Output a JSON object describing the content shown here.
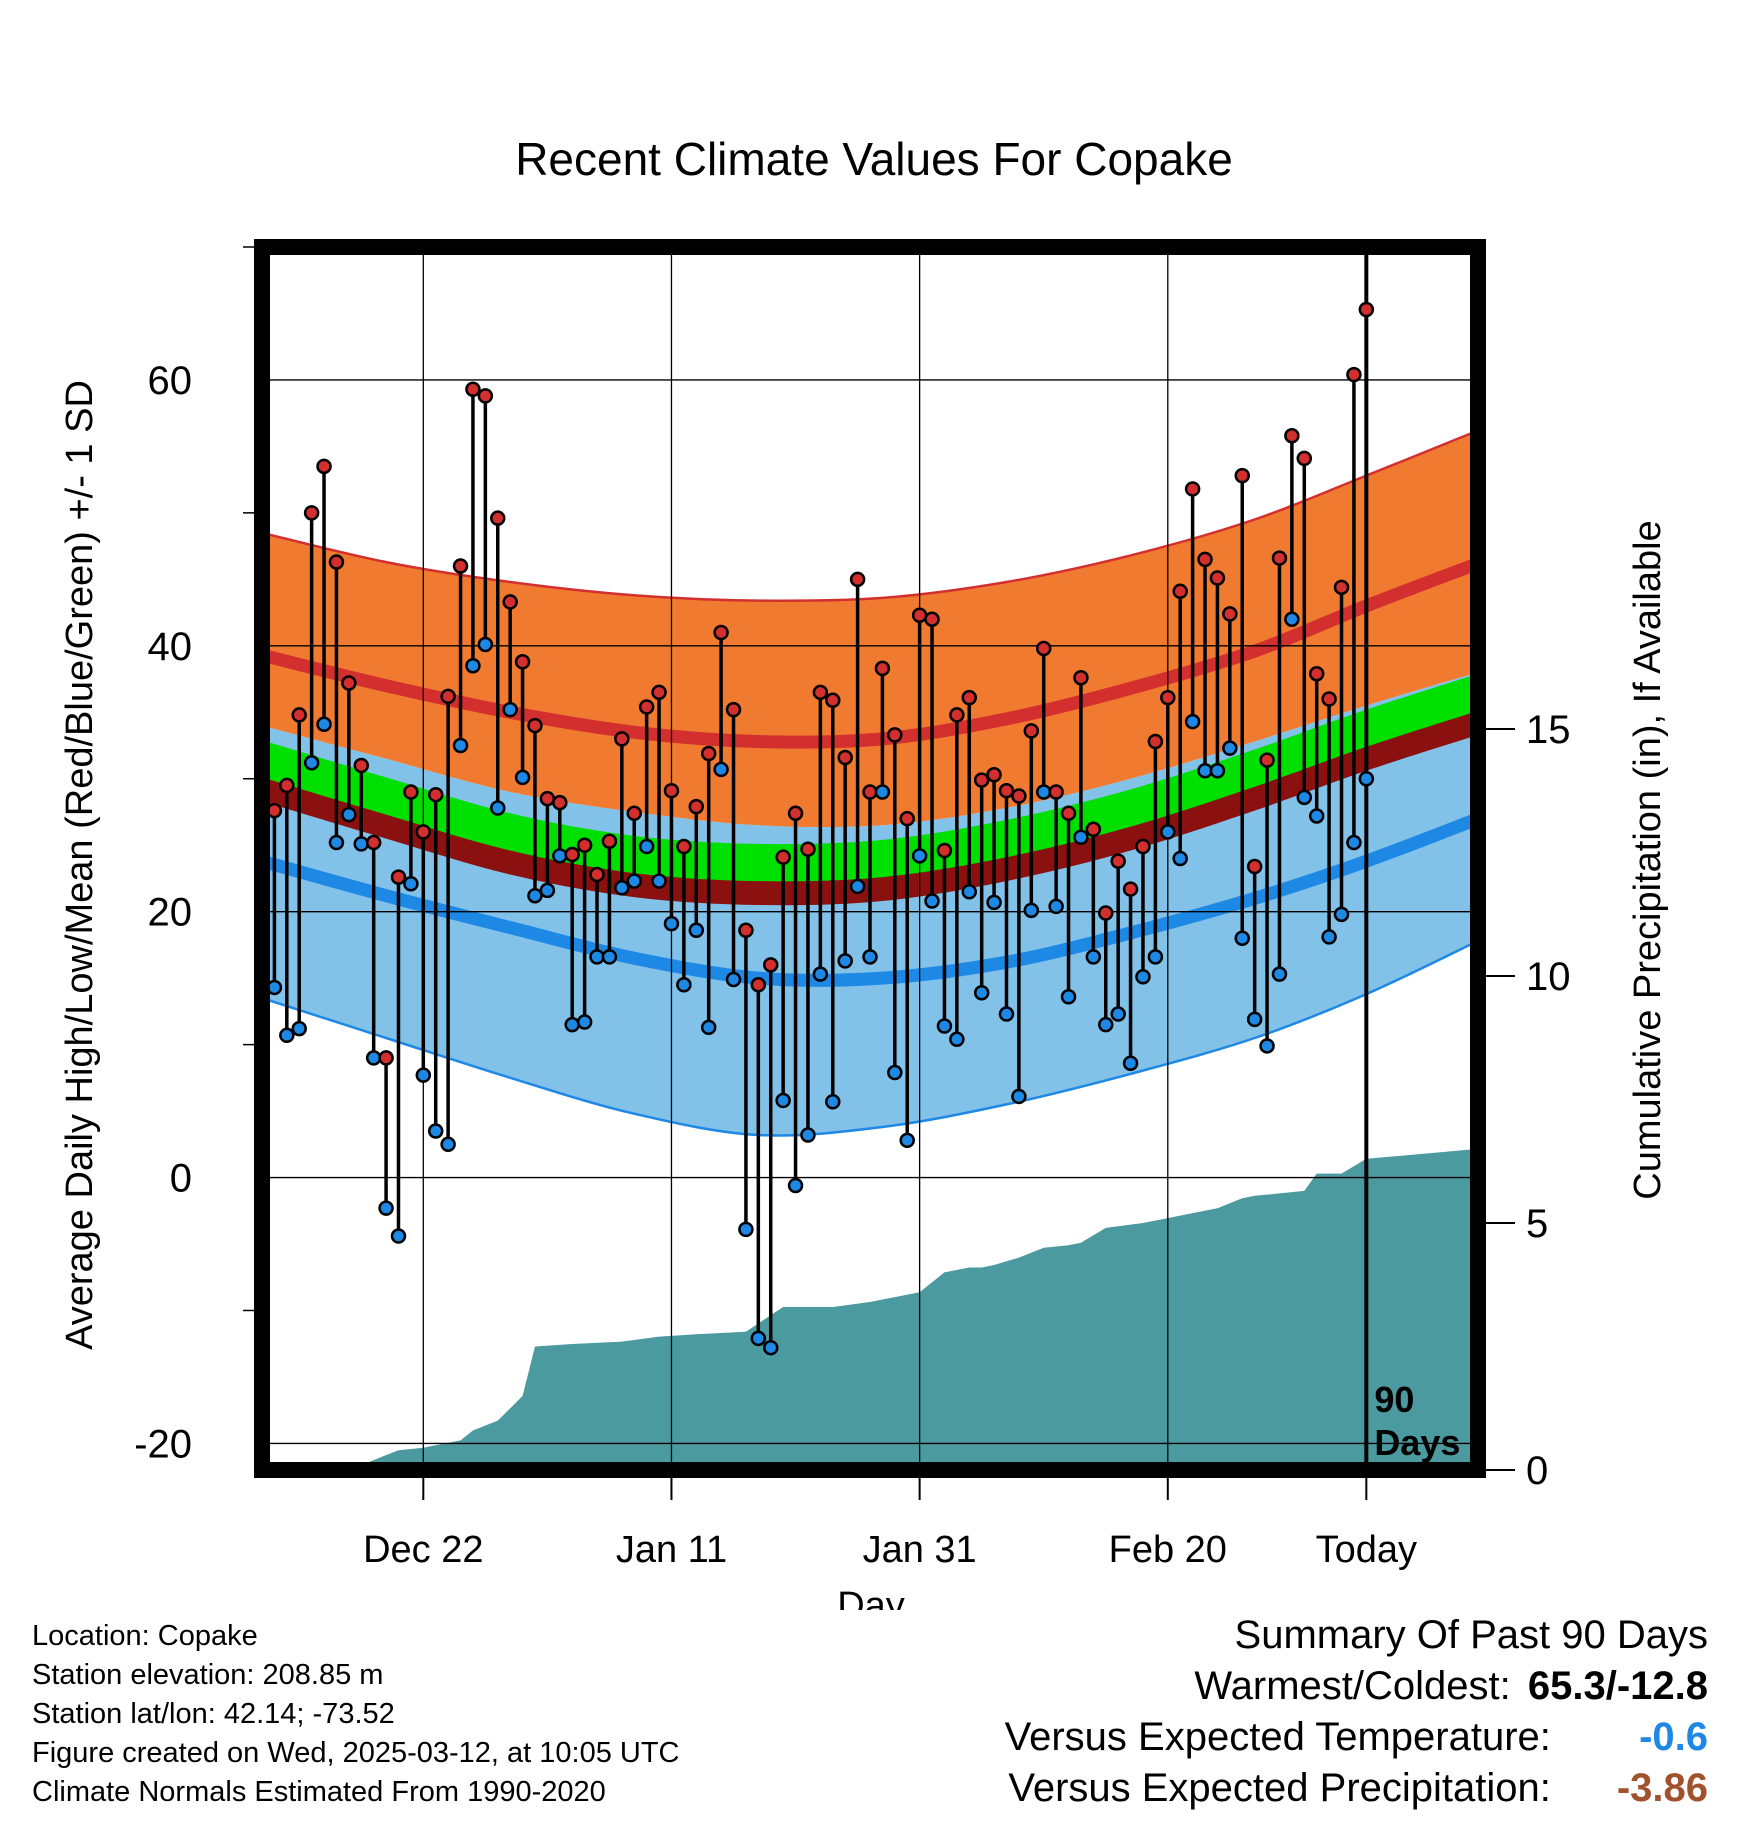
{
  "title": "Recent Climate Values For Copake",
  "y_axis_label": "Average Daily High/Low/Mean (Red/Blue/Green) +/- 1 SD",
  "y2_axis_label": "Cumulative Precipitation (in), If Available",
  "x_axis_label": "Day",
  "marker_label_line1": "90",
  "marker_label_line2": "Days",
  "info": {
    "location": "Location: Copake",
    "elevation": "Station elevation: 208.85 m",
    "latlon": "Station lat/lon: 42.14; -73.52",
    "created": "Figure created on Wed, 2025-03-12, at 10:05 UTC",
    "normals": "Climate Normals Estimated From 1990-2020"
  },
  "summary": {
    "heading": "Summary Of Past 90 Days",
    "warmest_coldest_label": "Warmest/Coldest:",
    "warmest_coldest_value": "65.3/-12.8",
    "temp_label": "Versus Expected Temperature:",
    "temp_value": "-0.6",
    "precip_label": "Versus Expected Precipitation:",
    "precip_value": "-3.86"
  },
  "colors": {
    "high_band": "#f07b30",
    "high_line": "#d32f2f",
    "low_band": "#82c1e8",
    "low_line": "#1e88e5",
    "mean_band": "#8b1010",
    "mean_line": "#00e000",
    "precip": "#4a9aa0",
    "high_marker": "#d32f2f",
    "low_marker": "#1e88e5",
    "temp_value": "#1e88e5",
    "precip_value": "#a0522d"
  },
  "chart_data": {
    "type": "line",
    "x_range": [
      -89,
      9
    ],
    "ylim": [
      -22,
      70
    ],
    "y2lim": [
      0,
      30
    ],
    "x_ticks": [
      {
        "day": -76,
        "label": "Dec 22"
      },
      {
        "day": -56,
        "label": "Jan 11"
      },
      {
        "day": -36,
        "label": "Jan 31"
      },
      {
        "day": -16,
        "label": "Feb 20"
      },
      {
        "day": 0,
        "label": "Today"
      }
    ],
    "y_ticks": [
      -20,
      0,
      20,
      40,
      60
    ],
    "y2_ticks": [
      0,
      5,
      10,
      15
    ],
    "today_marker_day": 0,
    "normal_high": {
      "x": [
        -89,
        -79,
        -69,
        -59,
        -49,
        -39,
        -29,
        -19,
        -9,
        0,
        9
      ],
      "mean": [
        39.3,
        37,
        35,
        33.5,
        32.8,
        33,
        34.5,
        36.8,
        39.6,
        43,
        46.2
      ],
      "upper": [
        48.5,
        46.3,
        44.8,
        43.8,
        43.4,
        43.6,
        44.8,
        46.8,
        49.5,
        52.8,
        56.2
      ],
      "lower": [
        34,
        31.5,
        29,
        27.5,
        26.5,
        26.5,
        27.8,
        30,
        32.8,
        35.5,
        38
      ]
    },
    "normal_low": {
      "x": [
        -89,
        -79,
        -69,
        -59,
        -49,
        -39,
        -29,
        -19,
        -9,
        0,
        9
      ],
      "mean": [
        23.8,
        21.2,
        18.8,
        16.5,
        15,
        15,
        16.2,
        18.4,
        21,
        23.8,
        27
      ],
      "upper": [
        34,
        31.5,
        29,
        27.5,
        26.5,
        26.5,
        27.8,
        30,
        32.8,
        35.5,
        38
      ],
      "lower": [
        13.5,
        10.5,
        7.5,
        4.8,
        3.2,
        3.8,
        5.5,
        7.8,
        10.5,
        13.8,
        17.8
      ]
    },
    "normal_mean": {
      "x": [
        -89,
        -79,
        -69,
        -59,
        -49,
        -39,
        -29,
        -19,
        -9,
        0,
        9
      ],
      "mean": [
        31.5,
        28.7,
        26,
        24.3,
        23.7,
        24,
        25.5,
        27.8,
        30.8,
        33.8,
        36.5
      ]
    },
    "daily": {
      "x": [
        -89,
        -88,
        -87,
        -86,
        -85,
        -84,
        -83,
        -82,
        -81,
        -80,
        -79,
        -78,
        -77,
        -76,
        -75,
        -74,
        -73,
        -72,
        -71,
        -70,
        -69,
        -68,
        -67,
        -66,
        -65,
        -64,
        -63,
        -62,
        -61,
        -60,
        -59,
        -58,
        -57,
        -56,
        -55,
        -54,
        -53,
        -52,
        -51,
        -50,
        -49,
        -48,
        -47,
        -46,
        -45,
        -44,
        -43,
        -42,
        -41,
        -40,
        -39,
        -38,
        -37,
        -36,
        -35,
        -34,
        -33,
        -32,
        -31,
        -30,
        -29,
        -28,
        -27,
        -26,
        -25,
        -24,
        -23,
        -22,
        -21,
        -20,
        -19,
        -18,
        -17,
        -16,
        -15,
        -14,
        -13,
        -12,
        -11,
        -10,
        -9,
        -8,
        -7,
        -6,
        -5,
        -4,
        -3,
        -2,
        -1,
        0
      ],
      "high": [
        35.6,
        27.6,
        29.5,
        34.8,
        50,
        53.5,
        46.3,
        37.2,
        31,
        25.2,
        9,
        22.6,
        29,
        26,
        28.8,
        36.2,
        46,
        59.3,
        58.8,
        49.6,
        43.3,
        38.8,
        34,
        28.5,
        28.2,
        24.3,
        25,
        22.8,
        25.3,
        33,
        27.4,
        35.4,
        36.5,
        29.1,
        24.9,
        27.9,
        31.9,
        41,
        35.2,
        18.6,
        14.5,
        16,
        24.1,
        27.4,
        24.7,
        36.5,
        35.9,
        31.6,
        45,
        29,
        38.3,
        33.3,
        27,
        42.3,
        42,
        24.6,
        34.8,
        36.1,
        29.9,
        30.3,
        29.1,
        28.7,
        33.6,
        39.8,
        29,
        27.4,
        37.6,
        26.2,
        19.9,
        23.8,
        21.7,
        24.9,
        32.8,
        36.1,
        44.1,
        51.8,
        46.5,
        45.1,
        42.4,
        52.8,
        23.4,
        31.4,
        46.6,
        55.8,
        54.1,
        37.9,
        36,
        44.4,
        60.4,
        65.3
      ],
      "low": [
        20.7,
        14.3,
        10.7,
        11.2,
        31.2,
        34.1,
        25.2,
        27.3,
        25.1,
        9,
        -2.3,
        -4.4,
        22.1,
        7.7,
        3.5,
        2.5,
        32.5,
        38.5,
        40.1,
        27.8,
        35.2,
        30.1,
        21.2,
        21.6,
        24.2,
        11.5,
        11.7,
        16.6,
        16.6,
        21.8,
        22.3,
        24.9,
        22.3,
        19.1,
        14.5,
        18.6,
        11.3,
        30.7,
        14.9,
        -3.9,
        -12.1,
        -12.8,
        5.8,
        -0.6,
        3.2,
        15.3,
        5.7,
        16.3,
        21.9,
        16.6,
        29,
        7.9,
        2.8,
        24.2,
        20.8,
        11.4,
        10.4,
        21.5,
        13.9,
        20.7,
        12.3,
        6.1,
        20.1,
        29,
        20.4,
        13.6,
        25.6,
        16.6,
        11.5,
        12.3,
        8.6,
        15.1,
        16.6,
        26,
        24,
        34.3,
        30.6,
        30.6,
        32.3,
        18,
        11.9,
        9.9,
        15.3,
        42,
        28.6,
        27.2,
        18.1,
        19.8,
        25.2,
        30
      ]
    },
    "precip_cumulative": {
      "x": [
        -89,
        -85,
        -82,
        -80,
        -78,
        -76,
        -75,
        -73,
        -72,
        -70,
        -68,
        -67,
        -64,
        -60,
        -57,
        -54,
        -50,
        -47,
        -43,
        -40,
        -38,
        -36,
        -34,
        -32,
        -31,
        -30,
        -28,
        -26,
        -24,
        -23,
        -21,
        -18,
        -16,
        -14,
        -12,
        -10,
        -9,
        -7,
        -5,
        -4,
        -2,
        0,
        9
      ],
      "values": [
        0,
        0,
        0,
        0.2,
        0.4,
        0.45,
        0.5,
        0.6,
        0.8,
        1.0,
        1.5,
        2.5,
        2.55,
        2.6,
        2.7,
        2.75,
        2.8,
        3.3,
        3.3,
        3.4,
        3.5,
        3.6,
        4.0,
        4.1,
        4.1,
        4.15,
        4.3,
        4.5,
        4.55,
        4.6,
        4.9,
        5.0,
        5.1,
        5.2,
        5.3,
        5.5,
        5.55,
        5.6,
        5.65,
        6.0,
        6.0,
        6.3,
        6.5
      ]
    }
  }
}
